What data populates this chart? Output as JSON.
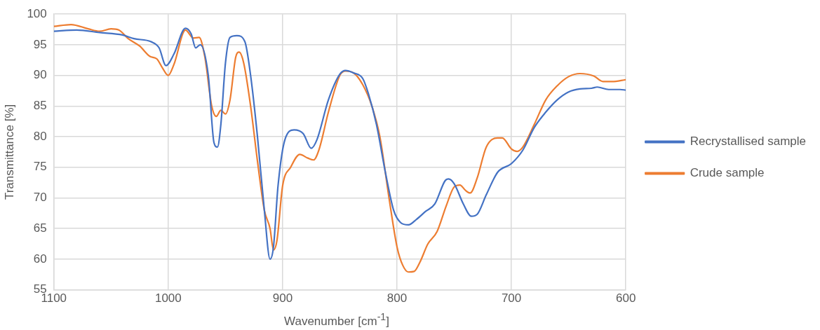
{
  "chart_data": {
    "type": "line",
    "xlabel": "Wavenumber [cm$^{-1}$]",
    "ylabel": "Transmittance [%]",
    "xlim": [
      1100,
      600
    ],
    "xticks": [
      1100,
      1000,
      900,
      800,
      700,
      600
    ],
    "ylim": [
      55,
      100
    ],
    "yticks": [
      55,
      60,
      65,
      70,
      75,
      80,
      85,
      90,
      95,
      100
    ],
    "grid": true,
    "legend": "right",
    "marker": "none",
    "line_style": "solid",
    "series": [
      {
        "name": "Recrystallised sample",
        "color": "#4472c4",
        "x": [
          1100,
          1080,
          1060,
          1040,
          1030,
          1015,
          1008,
          1002,
          995,
          985,
          980,
          976,
          972,
          965,
          960,
          957,
          954,
          950,
          946,
          940,
          933,
          928,
          922,
          916,
          911,
          908,
          904,
          898,
          890,
          882,
          875,
          870,
          860,
          850,
          845,
          838,
          830,
          825,
          818,
          810,
          803,
          797,
          790,
          783,
          775,
          767,
          758,
          755,
          750,
          742,
          735,
          730,
          722,
          712,
          700,
          690,
          680,
          670,
          660,
          650,
          640,
          630,
          625,
          615,
          605,
          600
        ],
        "values": [
          97.2,
          97.4,
          97.0,
          96.6,
          96.0,
          95.5,
          94.5,
          91.6,
          93.5,
          97.7,
          96.8,
          94.5,
          95,
          90,
          79,
          78.3,
          82,
          92,
          96.2,
          96.5,
          95.5,
          90,
          80,
          68,
          60,
          62,
          72,
          79.5,
          81.1,
          80.5,
          78.1,
          79.5,
          86,
          90.2,
          90.8,
          90.4,
          89.5,
          87,
          82,
          74,
          68,
          66,
          65.6,
          66.5,
          67.8,
          69,
          72.8,
          73.1,
          72.3,
          69,
          67,
          67.3,
          70.5,
          74.2,
          75.6,
          77.8,
          81.5,
          84,
          86,
          87.3,
          87.8,
          87.9,
          88.1,
          87.7,
          87.7,
          87.6
        ]
      },
      {
        "name": "Crude sample",
        "color": "#ed7d31",
        "x": [
          1100,
          1085,
          1070,
          1060,
          1050,
          1043,
          1035,
          1025,
          1016,
          1010,
          1005,
          1000,
          995,
          985,
          978,
          973,
          968,
          962,
          958,
          954,
          950,
          946,
          941,
          938,
          934,
          928,
          922,
          916,
          911,
          908,
          905,
          900,
          893,
          885,
          878,
          873,
          868,
          860,
          850,
          845,
          838,
          830,
          822,
          815,
          807,
          800,
          795,
          790,
          785,
          780,
          773,
          765,
          757,
          750,
          745,
          740,
          736,
          730,
          722,
          712,
          708,
          700,
          695,
          690,
          680,
          670,
          660,
          650,
          640,
          628,
          620,
          612,
          600
        ],
        "values": [
          98.0,
          98.3,
          97.6,
          97.2,
          97.6,
          97.4,
          96,
          94.8,
          93.1,
          92.7,
          91.2,
          90.0,
          91.8,
          97.4,
          96.1,
          96.2,
          93,
          85,
          83.3,
          84.3,
          83.7,
          86,
          93,
          93.8,
          92,
          85,
          76,
          68,
          65,
          61.5,
          63,
          72,
          75,
          77.1,
          76.5,
          76.2,
          78,
          84,
          90,
          90.7,
          90.4,
          88.5,
          85,
          80,
          70,
          62,
          59,
          57.9,
          58,
          59.5,
          62.5,
          64.5,
          68.7,
          71.8,
          72.1,
          71.2,
          70.8,
          73.2,
          78.3,
          79.8,
          79.8,
          78,
          77.6,
          78.3,
          82,
          86,
          88.3,
          89.8,
          90.3,
          89.9,
          89,
          89,
          89.3
        ]
      }
    ]
  }
}
